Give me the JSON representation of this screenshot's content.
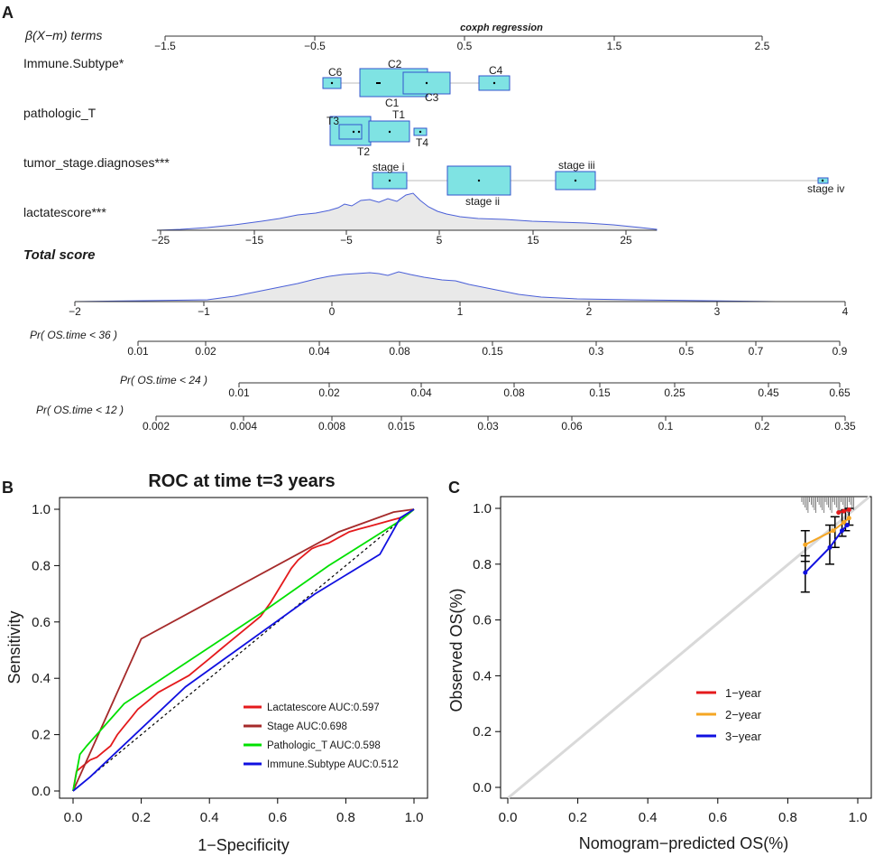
{
  "panels": {
    "a": "A",
    "b": "B",
    "c": "C"
  },
  "nomogram": {
    "beta_label": "β(X−m) terms",
    "top_axis_title": "coxph regression",
    "top_axis_ticks": [
      "−1.5",
      "−0.5",
      "0.5",
      "1.5",
      "2.5"
    ],
    "rows": {
      "immune_subtype": "Immune.Subtype*",
      "pathologic_t": "pathologic_T",
      "tumor_stage": "tumor_stage.diagnoses***",
      "lactatescore": "lactatescore***",
      "total_score": "Total score"
    },
    "immune_boxes": [
      "C6",
      "C2",
      "C4",
      "C1",
      "C3"
    ],
    "t_boxes": [
      "T3",
      "T1",
      "T2",
      "T4"
    ],
    "stage_boxes": [
      "stage i",
      "stage ii",
      "stage iii",
      "stage iv"
    ],
    "lactate_ticks": [
      "−25",
      "−15",
      "−5",
      "5",
      "15",
      "25"
    ],
    "total_ticks": [
      "−2",
      "−1",
      "0",
      "1",
      "2",
      "3",
      "4"
    ],
    "prob36": {
      "label": "Pr( OS.time < 36 )",
      "ticks": [
        "0.01",
        "0.02",
        "0.04",
        "0.08",
        "0.15",
        "0.3",
        "0.5",
        "0.7",
        "0.9"
      ]
    },
    "prob24": {
      "label": "Pr( OS.time < 24 )",
      "ticks": [
        "0.01",
        "0.02",
        "0.04",
        "0.08",
        "0.15",
        "0.25",
        "0.45",
        "0.65"
      ]
    },
    "prob12": {
      "label": "Pr( OS.time < 12 )",
      "ticks": [
        "0.002",
        "0.004",
        "0.008",
        "0.015",
        "0.03",
        "0.06",
        "0.1",
        "0.2",
        "0.35"
      ]
    }
  },
  "chart_data": [
    {
      "type": "line",
      "panel": "B",
      "title": "ROC at time t=3 years",
      "xlabel": "1−Specificity",
      "ylabel": "Sensitivity",
      "xlim": [
        0,
        1
      ],
      "ylim": [
        0,
        1
      ],
      "x_ticks": [
        "0.0",
        "0.2",
        "0.4",
        "0.6",
        "0.8",
        "1.0"
      ],
      "y_ticks": [
        "0.0",
        "0.2",
        "0.4",
        "0.6",
        "0.8",
        "1.0"
      ],
      "legend_position": "bottom-right",
      "series": [
        {
          "name": "Lactatescore AUC:0.597",
          "color": "#e41a1c",
          "x": [
            0,
            0.01,
            0.03,
            0.05,
            0.07,
            0.09,
            0.11,
            0.13,
            0.15,
            0.17,
            0.19,
            0.22,
            0.25,
            0.28,
            0.31,
            0.34,
            0.37,
            0.4,
            0.43,
            0.46,
            0.49,
            0.52,
            0.55,
            0.58,
            0.6,
            0.62,
            0.64,
            0.66,
            0.68,
            0.7,
            0.72,
            0.75,
            0.78,
            0.81,
            0.84,
            0.87,
            0.9,
            0.93,
            0.96,
            0.98,
            1
          ],
          "y": [
            0,
            0.07,
            0.09,
            0.11,
            0.12,
            0.14,
            0.16,
            0.2,
            0.23,
            0.26,
            0.29,
            0.32,
            0.35,
            0.37,
            0.39,
            0.41,
            0.44,
            0.47,
            0.5,
            0.53,
            0.56,
            0.59,
            0.62,
            0.67,
            0.71,
            0.75,
            0.79,
            0.82,
            0.84,
            0.86,
            0.87,
            0.88,
            0.9,
            0.92,
            0.93,
            0.94,
            0.95,
            0.96,
            0.97,
            0.98,
            1
          ]
        },
        {
          "name": "Stage AUC:0.698",
          "color": "#a52a2a",
          "x": [
            0,
            0.2,
            0.78,
            0.94,
            1
          ],
          "y": [
            0,
            0.54,
            0.92,
            0.99,
            1
          ]
        },
        {
          "name": "Pathologic_T AUC:0.598",
          "color": "#00e000",
          "x": [
            0,
            0.02,
            0.04,
            0.15,
            0.55,
            0.75,
            0.96,
            1
          ],
          "y": [
            0,
            0.13,
            0.16,
            0.31,
            0.63,
            0.8,
            0.96,
            1
          ]
        },
        {
          "name": "Immune.Subtype AUC:0.512",
          "color": "#1010e0",
          "x": [
            0,
            0.05,
            0.33,
            0.71,
            0.9,
            0.96,
            1
          ],
          "y": [
            0,
            0.05,
            0.37,
            0.7,
            0.84,
            0.97,
            1
          ]
        }
      ]
    },
    {
      "type": "line",
      "panel": "C",
      "xlabel": "Nomogram−predicted OS(%)",
      "ylabel": "Observed OS(%)",
      "xlim": [
        0,
        1
      ],
      "ylim": [
        0,
        1
      ],
      "x_ticks": [
        "0.0",
        "0.2",
        "0.4",
        "0.6",
        "0.8",
        "1.0"
      ],
      "y_ticks": [
        "0.0",
        "0.2",
        "0.4",
        "0.6",
        "0.8",
        "1.0"
      ],
      "legend_position": "bottom-center",
      "series": [
        {
          "name": "1−year",
          "color": "#e41a1c",
          "x": [
            0.945,
            0.96,
            0.975
          ],
          "y": [
            0.985,
            0.99,
            0.995
          ]
        },
        {
          "name": "2−year",
          "color": "#f5a623",
          "x": [
            0.85,
            0.93,
            0.96,
            0.975
          ],
          "y": [
            0.87,
            0.92,
            0.95,
            0.965
          ]
        },
        {
          "name": "3−year",
          "color": "#1010e0",
          "x": [
            0.85,
            0.92,
            0.955,
            0.97
          ],
          "y": [
            0.77,
            0.86,
            0.92,
            0.94
          ]
        }
      ]
    }
  ]
}
